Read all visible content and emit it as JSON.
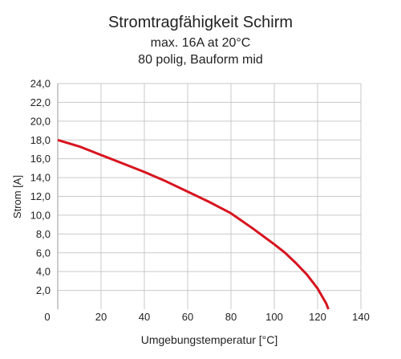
{
  "chart_data": {
    "type": "line",
    "title": "Stromtragfähigkeit Schirm",
    "subtitle_lines": [
      "max. 16A at 20°C",
      "80 polig, Bauform mid"
    ],
    "xlabel": "Umgebungstemperatur [°C]",
    "ylabel": "Strom [A]",
    "xlim": [
      0,
      140
    ],
    "ylim": [
      0,
      24
    ],
    "x_ticks": [
      0,
      20,
      40,
      60,
      80,
      100,
      120,
      140
    ],
    "x_tick_labels": [
      "0",
      "20",
      "40",
      "60",
      "80",
      "100",
      "120",
      "140"
    ],
    "y_ticks": [
      2,
      4,
      6,
      8,
      10,
      12,
      14,
      16,
      18,
      20,
      22,
      24
    ],
    "y_tick_labels": [
      "2,0",
      "4,0",
      "6,0",
      "8,0",
      "10,0",
      "12,0",
      "14,0",
      "16,0",
      "18,0",
      "20,0",
      "22,0",
      "24,0"
    ],
    "grid": true,
    "series": [
      {
        "color": "#d7141f",
        "x": [
          0,
          10,
          20,
          30,
          40,
          50,
          60,
          70,
          80,
          90,
          100,
          105,
          110,
          115,
          120,
          122,
          124,
          125
        ],
        "y": [
          18.0,
          17.3,
          16.4,
          15.5,
          14.6,
          13.6,
          12.5,
          11.4,
          10.2,
          8.6,
          6.9,
          6.0,
          4.9,
          3.7,
          2.2,
          1.4,
          0.6,
          0.0
        ]
      }
    ]
  }
}
